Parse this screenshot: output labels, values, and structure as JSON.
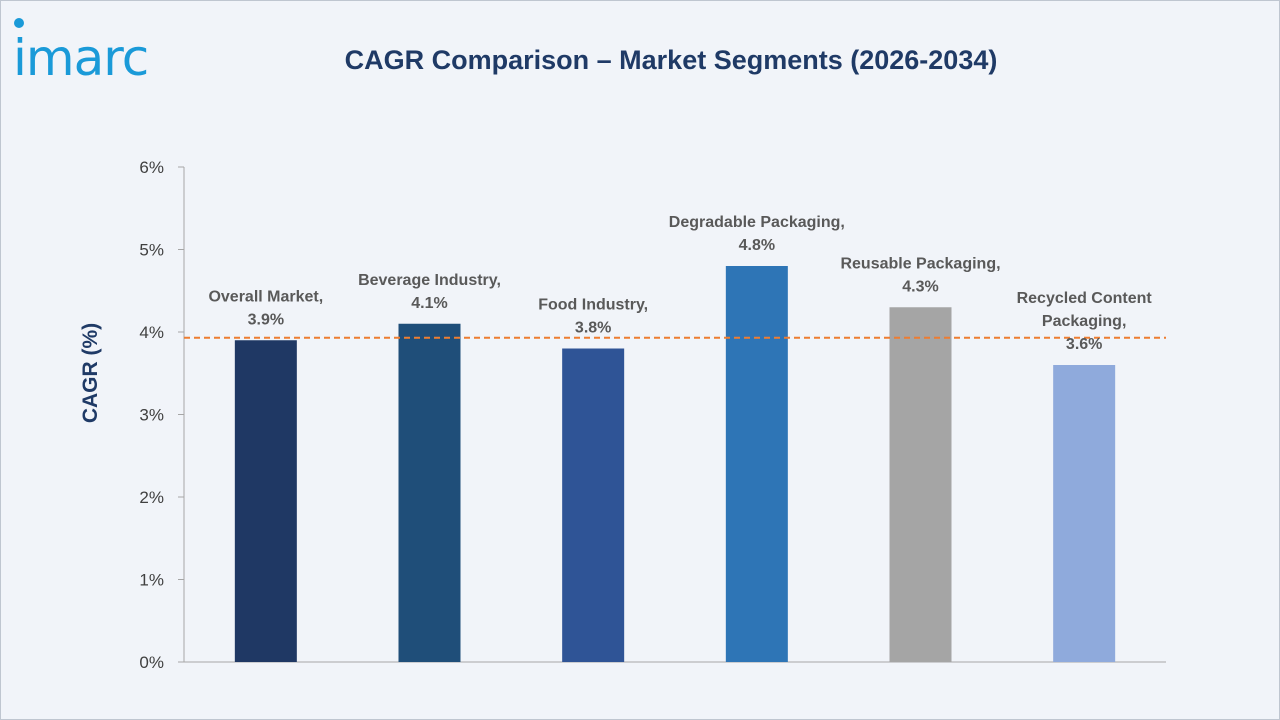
{
  "brand": {
    "logo_text": "imarc",
    "logo_color": "#1a9ad8"
  },
  "chart_data": {
    "type": "bar",
    "title": "CAGR Comparison – Market Segments (2026-2034)",
    "xlabel": "",
    "ylabel": "CAGR (%)",
    "ylim": [
      0,
      6
    ],
    "y_ticks": [
      0,
      1,
      2,
      3,
      4,
      5,
      6
    ],
    "y_tick_labels": [
      "0%",
      "1%",
      "2%",
      "3%",
      "4%",
      "5%",
      "6%"
    ],
    "categories": [
      "Overall Market",
      "Beverage Industry",
      "Food Industry",
      "Degradable Packaging",
      "Reusable Packaging",
      "Recycled Content Packaging"
    ],
    "values": [
      3.9,
      4.1,
      3.8,
      4.8,
      4.3,
      3.6
    ],
    "data_labels": [
      [
        "Overall Market,",
        "3.9%"
      ],
      [
        "Beverage Industry,",
        "4.1%"
      ],
      [
        "Food Industry,",
        "3.8%"
      ],
      [
        "Degradable Packaging,",
        "4.8%"
      ],
      [
        "Reusable Packaging,",
        "4.3%"
      ],
      [
        "Recycled Content",
        "Packaging,",
        "3.6%"
      ]
    ],
    "colors": [
      "#1f3864",
      "#1f4e79",
      "#2f5496",
      "#2e75b6",
      "#a5a5a5",
      "#8faadc"
    ],
    "reference_line": {
      "value": 3.93,
      "style": "dashed",
      "color": "#ed7d31"
    },
    "grid": false,
    "legend": "none"
  }
}
